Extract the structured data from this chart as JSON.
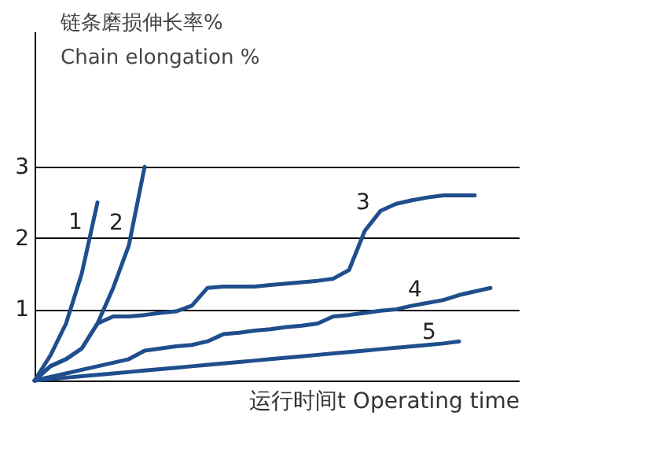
{
  "chart_data": {
    "type": "line",
    "ylabel": "链条磨损伸长率%\nChain elongation %",
    "xlabel": "运行时间t Operating time",
    "categories": [
      null,
      null,
      null,
      null,
      null,
      null,
      null,
      null,
      null,
      null,
      null,
      null,
      null,
      null,
      null,
      null,
      null,
      null,
      null,
      null,
      null,
      null,
      null,
      null,
      null,
      null,
      null,
      null,
      null,
      null,
      null
    ],
    "ylim": [
      0,
      4.9
    ],
    "yticks": [
      1,
      2,
      3
    ],
    "grid": "y",
    "marker": "none",
    "line_style": "solid",
    "series": [
      {
        "name": "1",
        "color": "#1f4e8c",
        "values": [
          0,
          0.35,
          0.8,
          1.5,
          2.5,
          null,
          null,
          null,
          null,
          null,
          null,
          null,
          null,
          null,
          null,
          null,
          null,
          null,
          null,
          null,
          null,
          null,
          null,
          null,
          null,
          null,
          null,
          null,
          null,
          null,
          null
        ]
      },
      {
        "name": "2",
        "color": "#1f4e8c",
        "values": [
          0,
          0.2,
          0.3,
          0.45,
          0.8,
          1.3,
          1.9,
          3.0,
          null,
          null,
          null,
          null,
          null,
          null,
          null,
          null,
          null,
          null,
          null,
          null,
          null,
          null,
          null,
          null,
          null,
          null,
          null,
          null,
          null,
          null,
          null
        ]
      },
      {
        "name": "3",
        "color": "#1f4e8c",
        "values": [
          0,
          0.2,
          0.3,
          0.45,
          0.8,
          0.9,
          0.9,
          0.92,
          0.95,
          0.97,
          1.05,
          1.3,
          1.32,
          1.32,
          1.32,
          1.34,
          1.36,
          1.38,
          1.4,
          1.43,
          1.55,
          2.1,
          2.38,
          2.48,
          2.53,
          2.57,
          2.6,
          2.6,
          2.6,
          null,
          null
        ]
      },
      {
        "name": "4",
        "color": "#1f4e8c",
        "values": [
          0,
          0.05,
          0.1,
          0.15,
          0.2,
          0.25,
          0.3,
          0.42,
          0.45,
          0.48,
          0.5,
          0.55,
          0.65,
          0.67,
          0.7,
          0.72,
          0.75,
          0.77,
          0.8,
          0.9,
          0.92,
          0.95,
          0.98,
          1.0,
          1.05,
          1.09,
          1.13,
          1.2,
          1.25,
          1.3,
          null
        ]
      },
      {
        "name": "5",
        "color": "#1f4e8c",
        "values": [
          0,
          0.02,
          0.04,
          0.06,
          0.08,
          0.1,
          0.12,
          0.14,
          0.16,
          0.18,
          0.2,
          0.22,
          0.24,
          0.26,
          0.28,
          0.3,
          0.32,
          0.34,
          0.36,
          0.38,
          0.4,
          0.42,
          0.44,
          0.46,
          0.48,
          0.5,
          0.52,
          0.55,
          null,
          null,
          null
        ]
      }
    ]
  }
}
